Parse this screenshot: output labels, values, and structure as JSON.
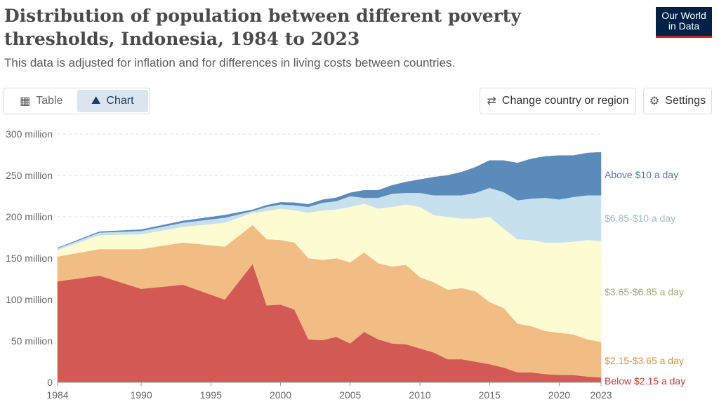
{
  "header": {
    "title": "Distribution of population between different poverty thresholds, Indonesia, 1984 to 2023",
    "subtitle": "This data is adjusted for inflation and for differences in living costs between countries."
  },
  "logo": {
    "line1": "Our World",
    "line2": "in Data"
  },
  "controls": {
    "table_label": "Table",
    "chart_label": "Chart",
    "change_label": "Change country or region",
    "settings_label": "Settings"
  },
  "icons": [
    "table-icon",
    "chart-icon",
    "swap-icon",
    "gear-icon"
  ],
  "chart_data": {
    "type": "area",
    "stacked": true,
    "title": "Distribution of population between different poverty thresholds, Indonesia, 1984 to 2023",
    "ylim": [
      0,
      300000000
    ],
    "y_ticks": [
      "0",
      "50 million",
      "100 million",
      "150 million",
      "200 million",
      "250 million",
      "300 million"
    ],
    "y_tick_values": [
      0,
      50,
      100,
      150,
      200,
      250,
      300
    ],
    "x_ticks": [
      1984,
      1990,
      1995,
      2000,
      2005,
      2010,
      2015,
      2020,
      2023
    ],
    "grid": "horizontal dashed",
    "legend": "right, inline labels",
    "x": [
      1984,
      1987,
      1990,
      1993,
      1996,
      1998,
      1999,
      2000,
      2001,
      2002,
      2003,
      2004,
      2005,
      2006,
      2007,
      2008,
      2009,
      2010,
      2011,
      2012,
      2013,
      2014,
      2015,
      2016,
      2017,
      2018,
      2019,
      2020,
      2021,
      2022,
      2023
    ],
    "unit": "million people",
    "series": [
      {
        "name": "Below $2.15 a day",
        "color": "#d35a54",
        "values": [
          122,
          129,
          113,
          118,
          100,
          143,
          93,
          94,
          88,
          52,
          51,
          55,
          47,
          61,
          52,
          47,
          46,
          41,
          36,
          28,
          28,
          25,
          22,
          18,
          12,
          12,
          10,
          9,
          9,
          7,
          6
        ]
      },
      {
        "name": "$2.15-$3.65 a day",
        "color": "#f1bd85",
        "values": [
          30,
          32,
          48,
          51,
          64,
          47,
          80,
          78,
          81,
          98,
          97,
          95,
          98,
          96,
          92,
          93,
          96,
          86,
          85,
          84,
          86,
          85,
          75,
          72,
          59,
          56,
          52,
          51,
          49,
          45,
          43
        ]
      },
      {
        "name": "$3.65-$6.85 a day",
        "color": "#fdfbd2",
        "values": [
          8,
          17,
          18,
          19,
          29,
          15,
          34,
          38,
          39,
          55,
          60,
          59,
          67,
          59,
          66,
          72,
          73,
          85,
          81,
          88,
          84,
          88,
          103,
          96,
          102,
          104,
          107,
          109,
          112,
          120,
          122
        ]
      },
      {
        "name": "$6.85-$10 a day",
        "color": "#c6e0ed",
        "values": [
          2,
          3,
          4,
          5,
          6,
          2,
          5,
          5,
          6,
          7,
          9,
          10,
          13,
          7,
          13,
          16,
          14,
          17,
          24,
          26,
          28,
          31,
          35,
          44,
          47,
          50,
          54,
          52,
          54,
          54,
          55
        ]
      },
      {
        "name": "Above $10 a day",
        "color": "#5b8bbb",
        "values": [
          0.5,
          1,
          1.5,
          2,
          3,
          1.5,
          2,
          2.5,
          3,
          3,
          3.5,
          4,
          4,
          9,
          9,
          10,
          13,
          16,
          22,
          24,
          28,
          31,
          33,
          38,
          45,
          48,
          50,
          53,
          50,
          51,
          52
        ]
      }
    ]
  }
}
